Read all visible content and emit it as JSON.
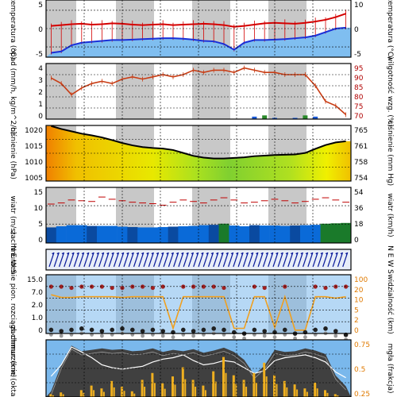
{
  "colors": {
    "frame": "#000000",
    "night": "#c8c8c8",
    "day": "#ffffff",
    "temp_max": "#d40000",
    "temp_min": "#1a2fd8",
    "temp_fill": "#7fbef0",
    "humidity": "#c83c14",
    "precip_rain": "#1a5ad8",
    "precip_snow": "#2a8a2a",
    "pressure_line": "#000000",
    "wind_light": "#0a6ad8",
    "wind_mid": "#0a4aa0",
    "wind_strong": "#1a7a2a",
    "wind_gust": "#c00000",
    "wind_arrow": "#0a1a9a",
    "cloud_low": "#404040",
    "cloud_mid": "#9a9a9a",
    "cloud_line": "#ffffff",
    "visibility": "#f0a020",
    "fog_bar": "#f0b020",
    "sky": "#7ab8ec"
  },
  "chart_data": [
    {
      "type": "line",
      "id": "temperature",
      "ylabel": "temperatura (°C)",
      "ylabel_right": "temperatura (°C)",
      "yticks_left": [
        "5",
        "0",
        "-5"
      ],
      "yticks_right": [
        "10",
        "0",
        "-5"
      ],
      "ylim": [
        -6.5,
        6.5
      ],
      "series": [
        {
          "key": "max",
          "values": [
            0.6,
            0.8,
            1.0,
            1.1,
            0.9,
            1.0,
            1.2,
            1.1,
            0.9,
            0.8,
            0.9,
            1.0,
            0.8,
            0.9,
            1.0,
            1.1,
            1.0,
            0.8,
            0.4,
            0.6,
            0.9,
            1.2,
            1.3,
            1.2,
            1.1,
            1.3,
            1.6,
            2.0,
            2.6,
            3.4
          ]
        },
        {
          "key": "min",
          "values": [
            -5.5,
            -5.2,
            -3.8,
            -3.2,
            -3.0,
            -2.8,
            -2.6,
            -2.6,
            -2.5,
            -2.4,
            -2.3,
            -2.2,
            -2.2,
            -2.3,
            -2.5,
            -2.8,
            -2.9,
            -3.5,
            -4.8,
            -3.2,
            -2.6,
            -2.6,
            -2.5,
            -2.4,
            -2.2,
            -2.0,
            -1.6,
            -0.8,
            0.0,
            0.2
          ]
        }
      ]
    },
    {
      "type": "bar",
      "id": "precipitation",
      "ylabel": "opad (mm/h, kg/m^2/h)",
      "ylabel_right": "wilgotność wzg. (%)",
      "yticks_left": [
        "4",
        "3",
        "2",
        "1",
        "0"
      ],
      "yticks_right": [
        "95",
        "90",
        "85",
        "80",
        "75",
        "70"
      ],
      "ylim": [
        0,
        4.5
      ],
      "humidity_ylim": [
        70,
        95
      ],
      "humidity": [
        88.5,
        86,
        81,
        84,
        86,
        87,
        86,
        88,
        89,
        88,
        89,
        90,
        89,
        90,
        92,
        91,
        92,
        92,
        91,
        93,
        92,
        91,
        91,
        90,
        90,
        90,
        85,
        78,
        76,
        72
      ],
      "precip": [
        0,
        0,
        0,
        0,
        0,
        0,
        0,
        0,
        0,
        0,
        0,
        0,
        0,
        0,
        0,
        0,
        0,
        0,
        0,
        0,
        0.2,
        0.3,
        0.1,
        0,
        0.1,
        0.3,
        0.2,
        0,
        0,
        0
      ]
    },
    {
      "type": "area",
      "id": "pressure",
      "ylabel": "ciśnienie (hPa)",
      "ylabel_right": "ciśnienie (mm Hg)",
      "yticks_left": [
        "1020",
        "1015",
        "1010",
        "1005"
      ],
      "yticks_right": [
        "765",
        "761",
        "758",
        "754"
      ],
      "ylim": [
        1004,
        1023
      ],
      "values": [
        1022.8,
        1021.8,
        1021.0,
        1020.2,
        1019.6,
        1018.9,
        1018.0,
        1017.0,
        1016.2,
        1015.6,
        1015.3,
        1015.1,
        1014.6,
        1013.6,
        1012.6,
        1012.0,
        1011.7,
        1011.7,
        1011.9,
        1012.1,
        1012.5,
        1012.7,
        1012.9,
        1013.0,
        1013.1,
        1013.6,
        1015.0,
        1016.3,
        1017.2,
        1017.6
      ]
    },
    {
      "type": "bar",
      "id": "wind",
      "ylabel": "wiatr (m/s)",
      "ylabel_right": "wiatr (km/h)",
      "yticks_left": [
        "15",
        "10",
        "5",
        "0"
      ],
      "yticks_right": [
        "54",
        "36",
        "18",
        "0"
      ],
      "ylim": [
        0,
        15
      ],
      "speed": [
        4.2,
        4.5,
        4.8,
        4.8,
        4.6,
        4.6,
        4.6,
        4.4,
        4.3,
        4.2,
        4.2,
        4.3,
        4.4,
        4.5,
        4.6,
        4.8,
        4.9,
        5.2,
        4.7,
        4.5,
        4.8,
        4.7,
        4.7,
        4.6,
        4.7,
        4.8,
        4.9,
        5.2,
        5.3,
        5.4
      ],
      "gust": [
        10.5,
        10.8,
        11.6,
        11.4,
        11.2,
        12.4,
        11.8,
        11.4,
        11.0,
        10.8,
        10.6,
        10.2,
        11.0,
        11.6,
        11.2,
        10.8,
        11.6,
        12.2,
        11.6,
        10.8,
        11.0,
        11.4,
        11.8,
        11.4,
        10.8,
        11.2,
        11.8,
        12.2,
        11.6,
        11.0
      ]
    },
    {
      "type": "scatter",
      "id": "wind_direction",
      "ylabel": "N E W S",
      "ylabel_right": "N E W S"
    },
    {
      "type": "scatter",
      "id": "visibility",
      "ylabel": "zachmurzenie pion. rozciągł. chmur (km)",
      "ylabel_right": "widzialność (km)",
      "yticks_left": [
        "15.0",
        "7.0",
        "2.0",
        "1.0",
        "0"
      ],
      "yticks_right": [
        "100",
        "20",
        "10",
        "5",
        "2",
        "0"
      ],
      "visibility": [
        20,
        16,
        16,
        17,
        17,
        17,
        17,
        16,
        17,
        17,
        17,
        17,
        0.5,
        17,
        17,
        17,
        17,
        17,
        0.5,
        0.5,
        17,
        17,
        0.6,
        17,
        0.3,
        0.3,
        17,
        17,
        15,
        17
      ],
      "cloud_tops": [
        3.5,
        3.5,
        3.4,
        3.5,
        3.5,
        3.5,
        3.4,
        3.4,
        3.5,
        3.5,
        3.4,
        3.5,
        0,
        3.5,
        3.5,
        3.5,
        3.5,
        3.4,
        0,
        0,
        3.5,
        3.4,
        0,
        3.5,
        0,
        0,
        3.5,
        3.4,
        3.5,
        3.5
      ],
      "cloud_bases": [
        0.8,
        0.7,
        0.8,
        0.9,
        0.8,
        0.7,
        0.8,
        0.9,
        0.8,
        0.7,
        0.8,
        0.7,
        0.6,
        0.8,
        0.7,
        0.8,
        0.9,
        0.8,
        0.6,
        0.5,
        0.8,
        0.7,
        0.6,
        0.8,
        0.5,
        0.6,
        0.8,
        0.9,
        0.7,
        0.4
      ]
    },
    {
      "type": "area",
      "id": "cloudiness",
      "ylabel": "zachmurzenie (oktanty)",
      "ylabel_right": "mgła (frakcja)",
      "yticks_right": [
        "0.75",
        "0.5",
        "0.25"
      ],
      "ylim": [
        0,
        8
      ],
      "cloud": [
        0.8,
        4.5,
        7.2,
        6.4,
        6.6,
        6.8,
        6.6,
        6.7,
        6.4,
        6.5,
        6.8,
        6.3,
        6.6,
        6.4,
        6.7,
        6.2,
        6.5,
        6.9,
        6.3,
        5.2,
        3.1,
        4.4,
        6.6,
        6.3,
        6.4,
        6.8,
        6.5,
        6.0,
        3.0,
        1.5
      ],
      "cloud_low": [
        0.4,
        2.0,
        4.5,
        3.8,
        3.0,
        2.0,
        1.6,
        1.4,
        1.6,
        1.8,
        2.4,
        2.8,
        3.0,
        3.4,
        2.6,
        2.0,
        2.2,
        2.6,
        2.4,
        1.6,
        0.8,
        1.2,
        2.6,
        3.0,
        3.2,
        3.4,
        3.0,
        2.4,
        1.0,
        0.2
      ],
      "fog": [
        0.05,
        0.08,
        0,
        0.12,
        0.2,
        0.15,
        0.28,
        0.18,
        0.1,
        0.3,
        0.42,
        0.24,
        0.36,
        0.52,
        0.3,
        0.2,
        0.45,
        0.7,
        0.38,
        0.3,
        0.42,
        0.6,
        0.38,
        0.28,
        0.22,
        0.15,
        0.25,
        0.12,
        0.05,
        0
      ]
    }
  ]
}
